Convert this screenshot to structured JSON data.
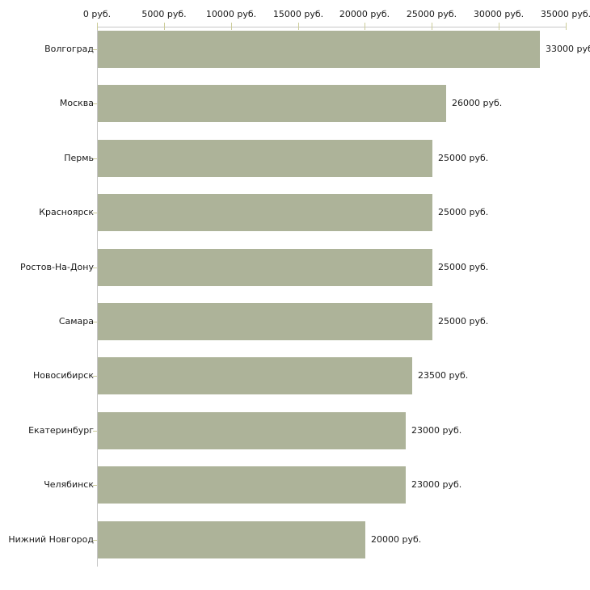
{
  "chart_data": {
    "type": "bar",
    "orientation": "horizontal",
    "title": "",
    "xlabel": "",
    "ylabel": "",
    "categories": [
      "Волгоград",
      "Москва",
      "Пермь",
      "Красноярск",
      "Ростов-На-Дону",
      "Самара",
      "Новосибирск",
      "Екатеринбург",
      "Челябинск",
      "Нижний Новгород"
    ],
    "values": [
      33000,
      26000,
      25000,
      25000,
      25000,
      25000,
      23500,
      23000,
      23000,
      20000
    ],
    "value_labels": [
      "33000 руб",
      "26000 руб.",
      "25000 руб.",
      "25000 руб.",
      "25000 руб.",
      "25000 руб.",
      "23500 руб.",
      "23000 руб.",
      "23000 руб.",
      "20000 руб."
    ],
    "x_axis": {
      "position": "top",
      "min": 0,
      "max": 35000,
      "tick_values": [
        0,
        5000,
        10000,
        15000,
        20000,
        25000,
        30000,
        35000
      ],
      "tick_labels": [
        "0 руб.",
        "5000 руб.",
        "10000 руб.",
        "15000 руб.",
        "20000 руб.",
        "25000 руб.",
        "30000 руб.",
        "35000 руб."
      ]
    },
    "grid": false,
    "legend": false,
    "colors": {
      "bar": "#adb399",
      "axis_line": "#c6c6c6",
      "tick": "#cccc99",
      "text": "#1a1a1a",
      "background": "#ffffff"
    }
  }
}
